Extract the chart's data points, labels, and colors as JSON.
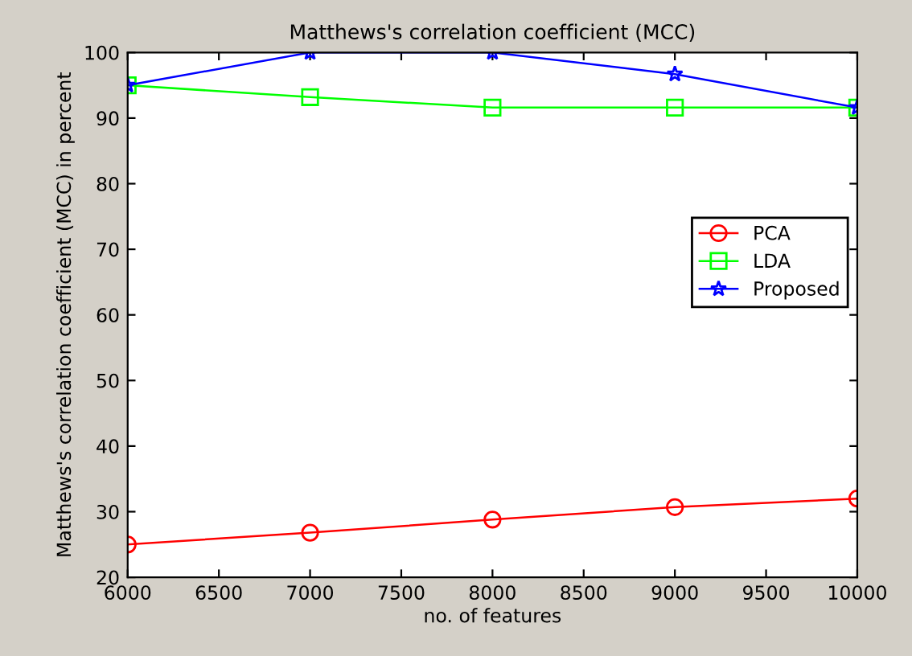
{
  "chart_data": {
    "type": "line",
    "title": "Matthews's correlation coefficient (MCC)",
    "xlabel": "no. of features",
    "ylabel": "Matthews's correlation coefficient (MCC) in percent",
    "x": [
      6000,
      7000,
      8000,
      9000,
      10000
    ],
    "series": [
      {
        "name": "PCA",
        "color": "#ff0000",
        "marker": "circle",
        "values": [
          25,
          26.8,
          28.8,
          30.7,
          32
        ]
      },
      {
        "name": "LDA",
        "color": "#00ff00",
        "marker": "square",
        "values": [
          95,
          93.2,
          91.6,
          91.6,
          91.6
        ]
      },
      {
        "name": "Proposed",
        "color": "#0000ff",
        "marker": "star",
        "values": [
          95,
          100,
          100,
          96.7,
          91.6
        ]
      }
    ],
    "xlim": [
      6000,
      10000
    ],
    "xticks": [
      6000,
      6500,
      7000,
      7500,
      8000,
      8500,
      9000,
      9500,
      10000
    ],
    "ylim": [
      20,
      100
    ],
    "yticks": [
      20,
      30,
      40,
      50,
      60,
      70,
      80,
      90,
      100
    ],
    "grid": false,
    "legend": "right",
    "line_style": "solid"
  }
}
